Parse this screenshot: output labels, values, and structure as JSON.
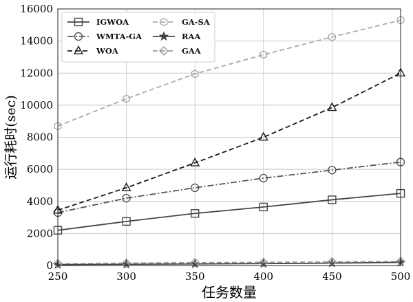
{
  "chart_data": {
    "type": "line",
    "title": "",
    "xlabel": "任务数量",
    "ylabel": "运行耗时(sec)",
    "x": [
      250,
      300,
      350,
      400,
      450,
      500
    ],
    "xlim": [
      250,
      500
    ],
    "ylim": [
      0,
      16000
    ],
    "xticks": [
      250,
      300,
      350,
      400,
      450,
      500
    ],
    "yticks": [
      0,
      2000,
      4000,
      6000,
      8000,
      10000,
      12000,
      14000,
      16000
    ],
    "grid": true,
    "legend_position": "top-left",
    "legend_columns": 2,
    "series": [
      {
        "name": "IGWOA",
        "values": [
          2200,
          2750,
          3250,
          3650,
          4100,
          4500
        ],
        "color": "#444444",
        "dash": "solid",
        "marker": "square"
      },
      {
        "name": "WMTA-GA",
        "values": [
          3300,
          4200,
          4850,
          5450,
          5950,
          6450
        ],
        "color": "#555555",
        "dash": "dashdot",
        "marker": "circle"
      },
      {
        "name": "WOA",
        "values": [
          3450,
          4850,
          6400,
          8000,
          9850,
          12000
        ],
        "color": "#1a1a1a",
        "dash": "dashed",
        "marker": "triangle"
      },
      {
        "name": "GA-SA",
        "values": [
          8700,
          10400,
          11950,
          13150,
          14250,
          15300
        ],
        "color": "#aaaaaa",
        "dash": "dashed",
        "marker": "hexagon"
      },
      {
        "name": "RAA",
        "values": [
          60,
          80,
          100,
          120,
          150,
          200
        ],
        "color": "#444444",
        "dash": "solid",
        "marker": "star"
      },
      {
        "name": "GAA",
        "values": [
          120,
          150,
          180,
          200,
          230,
          260
        ],
        "color": "#999999",
        "dash": "dashed",
        "marker": "diamond"
      }
    ]
  }
}
